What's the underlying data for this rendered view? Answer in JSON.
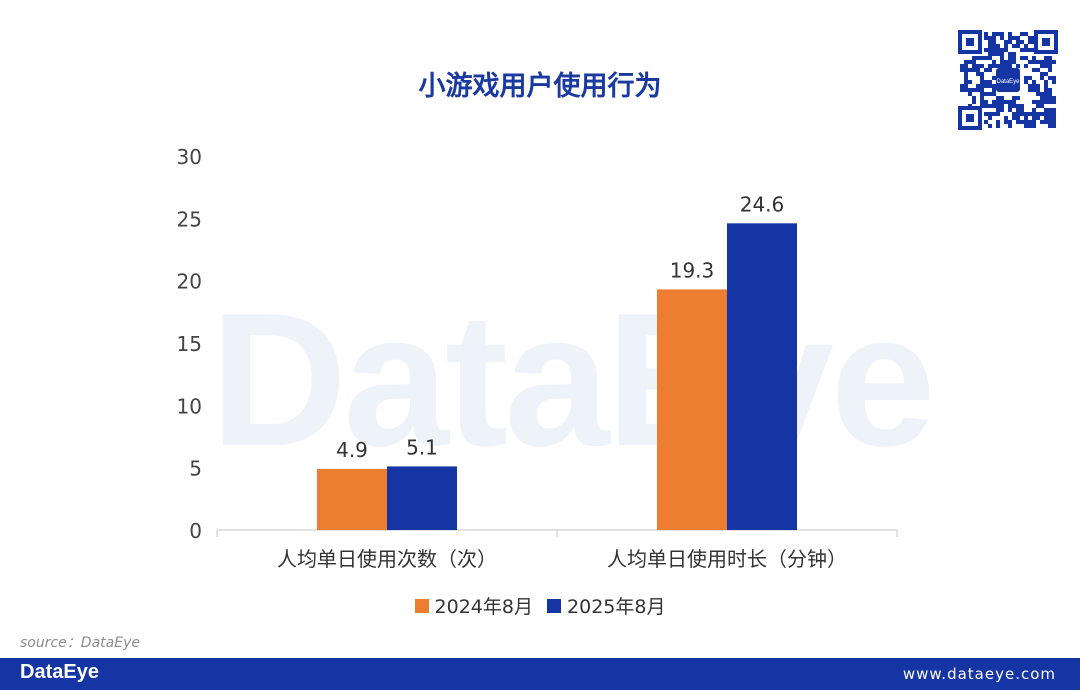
{
  "watermark": "DataEye",
  "qr_label": "DataEye",
  "chart_data": {
    "type": "bar",
    "title": "小游戏用户使用行为",
    "categories": [
      "人均单日使用次数（次）",
      "人均单日使用时长（分钟）"
    ],
    "series": [
      {
        "name": "2024年8月",
        "values": [
          4.9,
          19.3
        ],
        "color": "#ed7d31"
      },
      {
        "name": "2025年8月",
        "values": [
          5.1,
          24.6
        ],
        "color": "#1435a3"
      }
    ],
    "ylim": [
      0,
      30
    ],
    "yticks": [
      0,
      5,
      10,
      15,
      20,
      25,
      30
    ],
    "grid": false,
    "legend_position": "bottom"
  },
  "source": "source：DataEye",
  "footer": {
    "logo": "DataEye",
    "url": "www.dataeye.com"
  }
}
